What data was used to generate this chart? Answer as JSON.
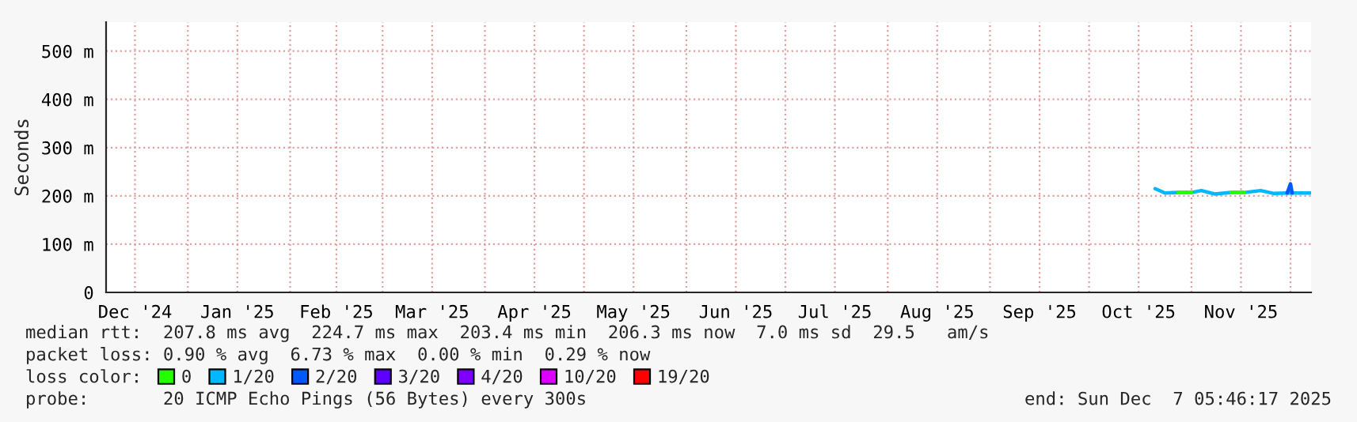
{
  "chart_data": {
    "type": "line",
    "ylabel": "Seconds",
    "xlim": [
      "2024-12-07T05:46",
      "2025-12-07T05:46"
    ],
    "xticks": [
      {
        "value": "2024-12-16",
        "label": "Dec '24"
      },
      {
        "value": "2025-01-01",
        "label": null
      },
      {
        "value": "2025-01-16",
        "label": "Jan '25"
      },
      {
        "value": "2025-02-01",
        "label": null
      },
      {
        "value": "2025-02-15",
        "label": "Feb '25"
      },
      {
        "value": "2025-03-01",
        "label": null
      },
      {
        "value": "2025-03-16",
        "label": "Mar '25"
      },
      {
        "value": "2025-04-01",
        "label": null
      },
      {
        "value": "2025-04-16",
        "label": "Apr '25"
      },
      {
        "value": "2025-05-01",
        "label": null
      },
      {
        "value": "2025-05-16",
        "label": "May '25"
      },
      {
        "value": "2025-06-01",
        "label": null
      },
      {
        "value": "2025-06-16",
        "label": "Jun '25"
      },
      {
        "value": "2025-07-01",
        "label": null
      },
      {
        "value": "2025-07-16",
        "label": "Jul '25"
      },
      {
        "value": "2025-08-01",
        "label": null
      },
      {
        "value": "2025-08-16",
        "label": "Aug '25"
      },
      {
        "value": "2025-09-01",
        "label": null
      },
      {
        "value": "2025-09-16",
        "label": "Sep '25"
      },
      {
        "value": "2025-10-01",
        "label": null
      },
      {
        "value": "2025-10-16",
        "label": "Oct '25"
      },
      {
        "value": "2025-11-01",
        "label": null
      },
      {
        "value": "2025-11-16",
        "label": "Nov '25"
      },
      {
        "value": "2025-12-01",
        "label": null
      }
    ],
    "ylim": [
      0,
      560
    ],
    "yticks": [
      0,
      {
        "value": 100,
        "label": "100 m"
      },
      {
        "value": 200,
        "label": "200 m"
      },
      {
        "value": 300,
        "label": "300 m"
      },
      {
        "value": 400,
        "label": "400 m"
      },
      {
        "value": 500,
        "label": "500 m"
      }
    ],
    "grid": true,
    "legend": "bottom",
    "legend_title": "loss color:",
    "line_style": "solid",
    "marker": "none",
    "series": [
      {
        "name": "0",
        "color": "#26ff00",
        "x": [
          "2025-10-28",
          "2025-11-01",
          "2025-11-06",
          "2025-11-13",
          "2025-11-17"
        ],
        "values": [
          207,
          207,
          null,
          207,
          207
        ]
      },
      {
        "name": "1/20",
        "color": "#00b8ff",
        "x": [
          "2025-10-21",
          "2025-10-24",
          "2025-10-28",
          "2025-11-01",
          "2025-11-04",
          "2025-11-08",
          "2025-11-13",
          "2025-11-17",
          "2025-11-22",
          "2025-11-26",
          "2025-11-30",
          "2025-12-01T12:00",
          "2025-12-07"
        ],
        "values": [
          215,
          206,
          207,
          207,
          211,
          204,
          207,
          207,
          211,
          205,
          206,
          206,
          206
        ]
      },
      {
        "name": "2/20",
        "color": "#0059ff",
        "x": [
          "2025-11-30",
          "2025-12-01",
          "2025-12-01T12:00"
        ],
        "values": [
          206,
          225,
          206
        ]
      },
      {
        "name": "3/20",
        "color": "#5e00ff"
      },
      {
        "name": "4/20",
        "color": "#7e00ff"
      },
      {
        "name": "10/20",
        "color": "#dd00ff"
      },
      {
        "name": "19/20",
        "color": "#ff0000"
      }
    ],
    "annotations": [
      "median rtt:  207.8 ms avg  224.7 ms max  203.4 ms min  206.3 ms now  7.0 ms sd  29.5   am/s",
      "packet loss: 0.90 % avg  6.73 % max  0.00 % min  0.29 % now",
      "probe:       20 ICMP Echo Pings (56 Bytes) every 300s",
      "end: Sun Dec  7 05:46:17 2025"
    ]
  }
}
